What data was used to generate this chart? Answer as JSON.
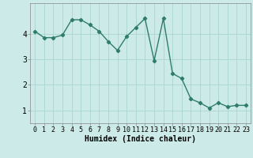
{
  "x": [
    0,
    1,
    2,
    3,
    4,
    5,
    6,
    7,
    8,
    9,
    10,
    11,
    12,
    13,
    14,
    15,
    16,
    17,
    18,
    19,
    20,
    21,
    22,
    23
  ],
  "y": [
    4.1,
    3.85,
    3.85,
    3.95,
    4.55,
    4.55,
    4.35,
    4.1,
    3.7,
    3.35,
    3.9,
    4.25,
    4.6,
    2.95,
    4.6,
    2.45,
    2.25,
    1.45,
    1.3,
    1.1,
    1.3,
    1.15,
    1.2,
    1.2
  ],
  "line_color": "#2e7d6b",
  "marker": "D",
  "marker_size": 2.2,
  "line_width": 1.0,
  "background_color": "#cceae7",
  "grid_color": "#aad4d0",
  "xlabel": "Humidex (Indice chaleur)",
  "xlabel_fontsize": 7,
  "ylabel_ticks": [
    1,
    2,
    3,
    4
  ],
  "xlim": [
    -0.5,
    23.5
  ],
  "ylim": [
    0.5,
    5.2
  ],
  "tick_fontsize": 6,
  "title": ""
}
